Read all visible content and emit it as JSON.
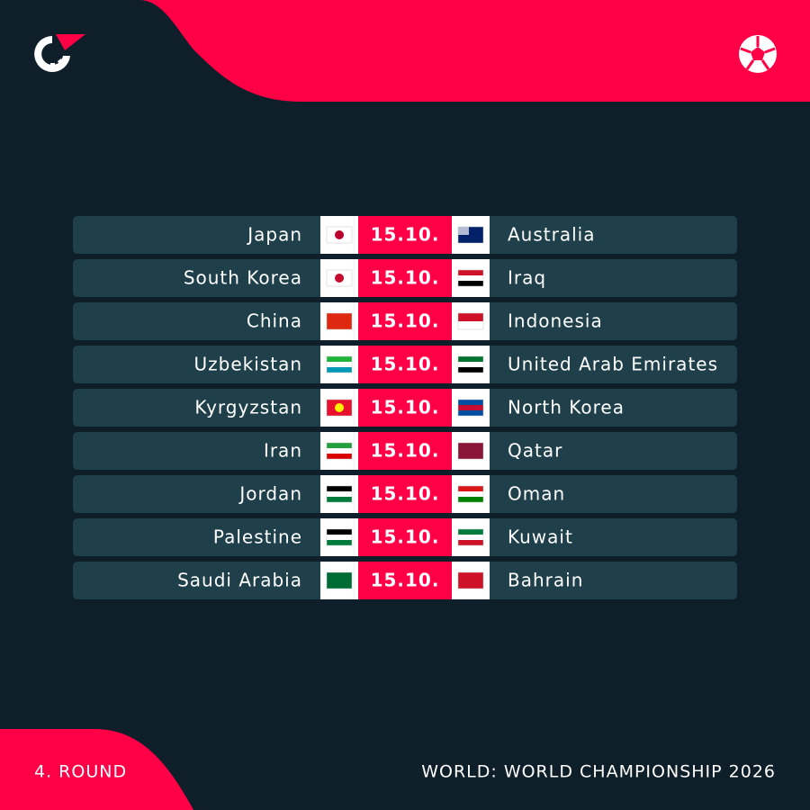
{
  "matches": [
    {
      "home": "Japan",
      "date": "15.10.",
      "away": "Australia"
    },
    {
      "home": "South Korea",
      "date": "15.10.",
      "away": "Iraq"
    },
    {
      "home": "China",
      "date": "15.10.",
      "away": "Indonesia"
    },
    {
      "home": "Uzbekistan",
      "date": "15.10.",
      "away": "United Arab Emirates"
    },
    {
      "home": "Kyrgyzstan",
      "date": "15.10.",
      "away": "North Korea"
    },
    {
      "home": "Iran",
      "date": "15.10.",
      "away": "Qatar"
    },
    {
      "home": "Jordan",
      "date": "15.10.",
      "away": "Oman"
    },
    {
      "home": "Palestine",
      "date": "15.10.",
      "away": "Kuwait"
    },
    {
      "home": "Saudi Arabia",
      "date": "15.10.",
      "away": "Bahrain"
    }
  ],
  "footer": {
    "round": "4. ROUND",
    "competition": "WORLD: WORLD CHAMPIONSHIP 2026"
  }
}
